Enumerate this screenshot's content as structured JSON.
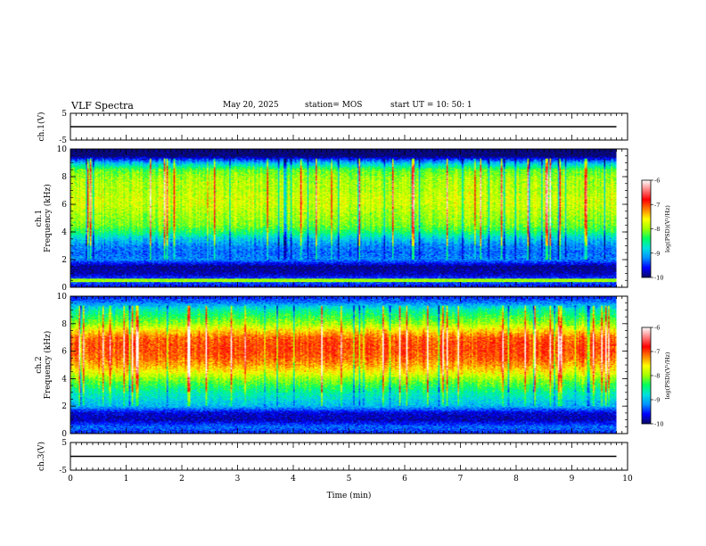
{
  "header": {
    "title": "VLF Spectra",
    "date": "May 20, 2025",
    "station": "station= MOS",
    "start": "start  UT  =   10: 50: 1"
  },
  "colors": {
    "colormap": [
      "#0a0a60",
      "#0000ff",
      "#0090ff",
      "#00e0e0",
      "#00ff60",
      "#a0ff00",
      "#ffff00",
      "#ff8000",
      "#ff0000",
      "#ff8080",
      "#ffffff"
    ],
    "axes": "#000000"
  },
  "chart_data": [
    {
      "type": "line",
      "ylabel": "ch.1(V)",
      "ylim": [
        -5,
        5
      ],
      "yticks": [
        "5",
        "-5"
      ],
      "x": [
        0,
        9.8
      ],
      "y": [
        0,
        0
      ]
    },
    {
      "type": "heatmap",
      "ylabel": "ch.1\nFrequency (kHz)",
      "ylim": [
        0,
        10
      ],
      "yticks": [
        "0",
        "2",
        "4",
        "6",
        "8",
        "10"
      ],
      "xlim": [
        0,
        10
      ],
      "data_xmax": 9.8,
      "colorbar": {
        "label": "log(PSD)(V²/Hz)",
        "range": [
          -10,
          -6
        ],
        "ticks": [
          "-6",
          "-7",
          "-8",
          "-9",
          "-10"
        ]
      },
      "profile_khz": [
        0,
        0.5,
        1.0,
        1.5,
        2.0,
        2.5,
        3.0,
        3.5,
        4.0,
        4.5,
        5.0,
        5.5,
        6.0,
        6.5,
        7.0,
        7.5,
        8.0,
        8.5,
        9.0,
        9.5,
        10.0
      ],
      "profile_logpsd": [
        -9.6,
        -9.3,
        -9.8,
        -9.9,
        -9.2,
        -9.3,
        -9.2,
        -8.9,
        -8.4,
        -8.1,
        -8.0,
        -7.9,
        -7.8,
        -7.8,
        -7.9,
        -7.9,
        -8.0,
        -8.2,
        -9.0,
        -10.0,
        -10.0
      ]
    },
    {
      "type": "heatmap",
      "ylabel": "ch.2\nFrequency (kHz)",
      "ylim": [
        0,
        10
      ],
      "yticks": [
        "0",
        "2",
        "4",
        "6",
        "8",
        "10"
      ],
      "xlim": [
        0,
        10
      ],
      "data_xmax": 9.8,
      "colorbar": {
        "label": "log(PSD)(V²/Hz)",
        "range": [
          -10,
          -6
        ],
        "ticks": [
          "-6",
          "-7",
          "-8",
          "-9",
          "-10"
        ]
      },
      "profile_khz": [
        0,
        0.5,
        1.0,
        1.5,
        2.0,
        2.5,
        3.0,
        3.5,
        4.0,
        4.5,
        5.0,
        5.5,
        6.0,
        6.5,
        7.0,
        7.5,
        8.0,
        8.5,
        9.0,
        9.5,
        10.0
      ],
      "profile_logpsd": [
        -9.5,
        -9.3,
        -9.8,
        -9.7,
        -9.0,
        -8.8,
        -8.6,
        -8.3,
        -8.0,
        -7.6,
        -7.3,
        -7.1,
        -7.0,
        -7.0,
        -7.1,
        -7.5,
        -8.0,
        -8.3,
        -8.6,
        -9.2,
        -9.6
      ]
    },
    {
      "type": "line",
      "ylabel": "ch.3(V)",
      "ylim": [
        -5,
        5
      ],
      "yticks": [
        "5",
        "-5"
      ],
      "x": [
        0,
        9.8
      ],
      "y": [
        0,
        0
      ]
    }
  ],
  "x_axis": {
    "label": "Time  (min)",
    "range": [
      0,
      10
    ],
    "ticks": [
      "0",
      "1",
      "2",
      "3",
      "4",
      "5",
      "6",
      "7",
      "8",
      "9",
      "10"
    ]
  }
}
